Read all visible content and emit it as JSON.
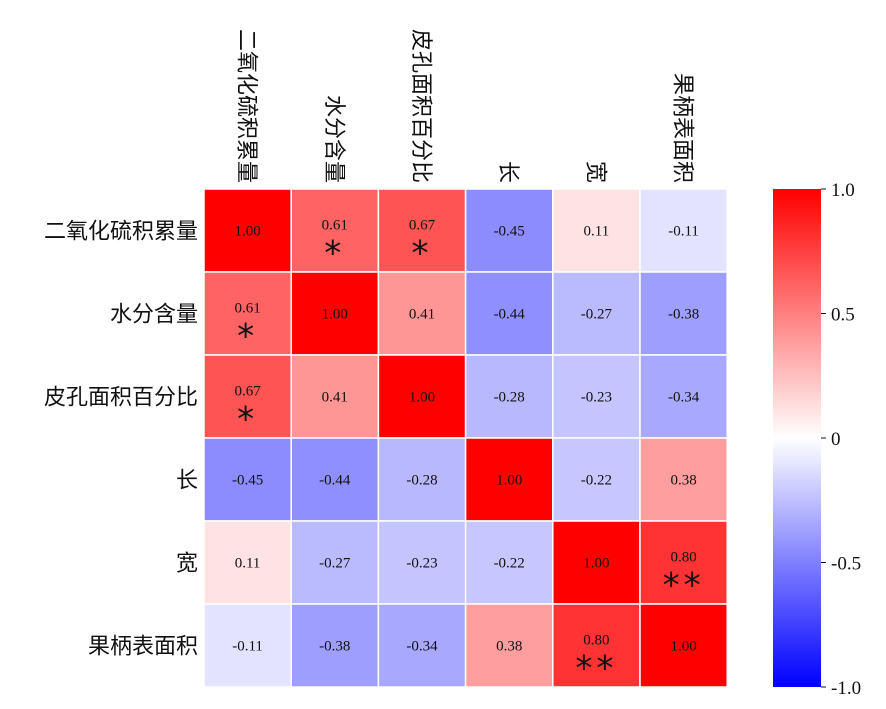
{
  "chart_data": {
    "type": "heatmap",
    "title": "",
    "variables": [
      "二氧化硫积累量",
      "水分含量",
      "皮孔面积百分比",
      "长",
      "宽",
      "果柄表面积"
    ],
    "matrix": [
      [
        1.0,
        0.61,
        0.67,
        -0.45,
        0.11,
        -0.11
      ],
      [
        0.61,
        1.0,
        0.41,
        -0.44,
        -0.27,
        -0.38
      ],
      [
        0.67,
        0.41,
        1.0,
        -0.28,
        -0.23,
        -0.34
      ],
      [
        -0.45,
        -0.44,
        -0.28,
        1.0,
        -0.22,
        0.38
      ],
      [
        0.11,
        -0.27,
        -0.23,
        -0.22,
        1.0,
        0.8
      ],
      [
        -0.11,
        -0.38,
        -0.34,
        0.38,
        0.8,
        1.0
      ]
    ],
    "significance": [
      [
        "",
        "*",
        "*",
        "",
        "",
        ""
      ],
      [
        "*",
        "",
        "",
        "",
        "",
        ""
      ],
      [
        "*",
        "",
        "",
        "",
        "",
        ""
      ],
      [
        "",
        "",
        "",
        "",
        "",
        ""
      ],
      [
        "",
        "",
        "",
        "",
        "",
        "**"
      ],
      [
        "",
        "",
        "",
        "",
        "**",
        ""
      ]
    ],
    "colorbar": {
      "range": [
        -1.0,
        1.0
      ],
      "ticks": [
        1.0,
        0.5,
        0,
        -0.5,
        -1.0
      ],
      "tick_labels": [
        "1.0",
        "0.5",
        "0",
        "-0.5",
        "-1.0"
      ],
      "colors": {
        "low": "#0000ff",
        "mid": "#ffffff",
        "high": "#ff0000"
      },
      "placement": "right"
    }
  }
}
